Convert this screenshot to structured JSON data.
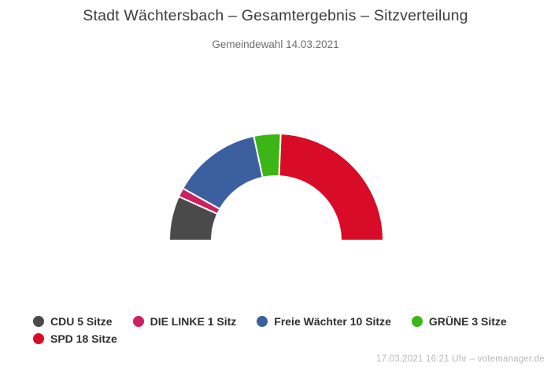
{
  "header": {
    "title": "Stadt Wächtersbach – Gesamtergebnis – Sitzverteilung",
    "subtitle": "Gemeindewahl 14.03.2021"
  },
  "chart_data": {
    "type": "pie",
    "variant": "half-donut",
    "title": "Stadt Wächtersbach – Gesamtergebnis – Sitzverteilung",
    "subtitle": "Gemeindewahl 14.03.2021",
    "total_seats": 37,
    "unit": "Sitze",
    "start_angle_deg": 180,
    "end_angle_deg": 0,
    "inner_radius_ratio": 0.6,
    "legend_position": "bottom-left",
    "series": [
      {
        "name": "CDU",
        "label": "CDU 5 Sitze",
        "value": 5,
        "color": "#4a4a4a"
      },
      {
        "name": "DIE LINKE",
        "label": "DIE LINKE 1 Sitz",
        "value": 1,
        "color": "#cb2160"
      },
      {
        "name": "Freie Wächter",
        "label": "Freie Wächter 10 Sitze",
        "value": 10,
        "color": "#3c5fa0"
      },
      {
        "name": "GRÜNE",
        "label": "GRÜNE 3 Sitze",
        "value": 3,
        "color": "#3cb516"
      },
      {
        "name": "SPD",
        "label": "SPD 18 Sitze",
        "value": 18,
        "color": "#d90c28"
      }
    ]
  },
  "footer": {
    "timestamp": "17.03.2021 16:21 Uhr – votemanager.de"
  }
}
